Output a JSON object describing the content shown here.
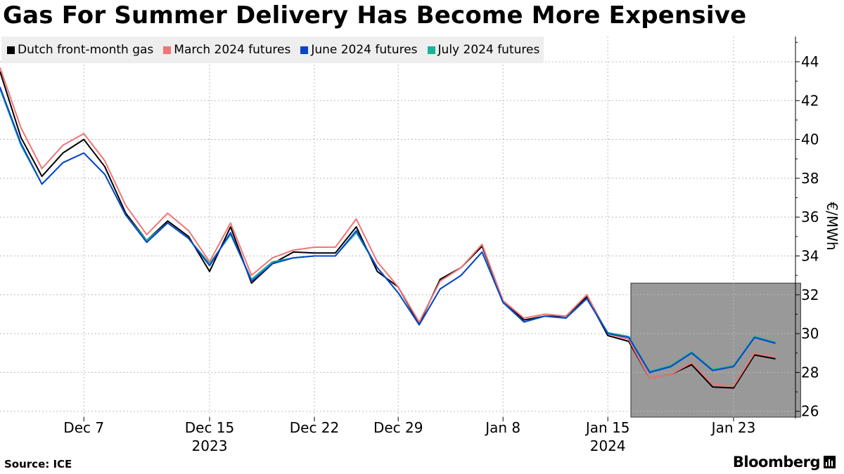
{
  "title": "Gas For Summer Delivery Has Become More Expensive",
  "source": "Source: ICE",
  "brand": "Bloomberg",
  "colors": {
    "dutch": "#000000",
    "march": "#f07575",
    "june": "#0a45c8",
    "july": "#1ab394",
    "highlight": "#999999",
    "grid": "#bbbbbb",
    "legend_bg": "#eeeeee"
  },
  "chart_data": {
    "type": "line",
    "title": "Gas For Summer Delivery Has Become More Expensive",
    "ylabel": "€/MWh",
    "ylim": [
      25.7,
      45.3
    ],
    "yticks": [
      26,
      28,
      30,
      32,
      34,
      36,
      38,
      40,
      42,
      44
    ],
    "ytick_labels": [
      "26",
      "28",
      "30",
      "32",
      "34",
      "36",
      "38",
      "40",
      "42",
      "44"
    ],
    "x_start": "Dec 1",
    "xticks": [
      {
        "index": 4,
        "label": "Dec 7",
        "year": ""
      },
      {
        "index": 10,
        "label": "Dec 15",
        "year": "2023"
      },
      {
        "index": 15,
        "label": "Dec 22",
        "year": ""
      },
      {
        "index": 19,
        "label": "Dec 29",
        "year": ""
      },
      {
        "index": 24,
        "label": "Jan 8",
        "year": ""
      },
      {
        "index": 29,
        "label": "Jan 15",
        "year": "2024"
      },
      {
        "index": 35,
        "label": "Jan 23",
        "year": ""
      }
    ],
    "highlight": {
      "x_start": 30.1,
      "x_end": 38.2,
      "y_low": 25.7,
      "y_high": 32.6
    },
    "series": [
      {
        "name": "Dutch front-month gas",
        "color": "#000000",
        "values": [
          43.5,
          40.1,
          38.1,
          39.3,
          40.0,
          38.6,
          36.2,
          34.8,
          35.8,
          35.0,
          33.2,
          35.5,
          32.6,
          33.6,
          34.2,
          34.15,
          34.15,
          35.5,
          33.2,
          32.4,
          30.5,
          32.8,
          33.4,
          34.5,
          31.7,
          30.7,
          30.9,
          30.9,
          31.9,
          29.9,
          29.6,
          27.7,
          27.9,
          28.4,
          27.25,
          27.2,
          28.9,
          28.7
        ]
      },
      {
        "name": "March 2024 futures",
        "color": "#f07575",
        "values": [
          43.7,
          40.6,
          38.5,
          39.7,
          40.3,
          38.9,
          36.6,
          35.1,
          36.2,
          35.3,
          33.7,
          35.7,
          33.0,
          33.9,
          34.3,
          34.45,
          34.45,
          35.9,
          33.7,
          32.4,
          30.6,
          32.7,
          33.4,
          34.6,
          31.7,
          30.8,
          31.0,
          30.9,
          32.0,
          30.0,
          29.7,
          27.7,
          27.9,
          28.5,
          27.4,
          27.3,
          29.0,
          28.8
        ]
      },
      {
        "name": "June 2024 futures",
        "color": "#0a45c8",
        "values": [
          42.7,
          39.8,
          37.7,
          38.8,
          39.3,
          38.2,
          36.1,
          34.7,
          35.7,
          34.9,
          33.5,
          35.2,
          32.7,
          33.6,
          33.9,
          34.0,
          34.0,
          35.3,
          33.4,
          32.1,
          30.45,
          32.3,
          33.0,
          34.2,
          31.6,
          30.6,
          30.9,
          30.8,
          31.8,
          30.0,
          29.8,
          28.0,
          28.3,
          29.0,
          28.1,
          28.3,
          29.8,
          29.5
        ]
      },
      {
        "name": "July 2024 futures",
        "color": "#1ab394",
        "values": [
          42.6,
          39.7,
          37.7,
          38.8,
          39.3,
          38.2,
          36.1,
          34.8,
          35.7,
          34.9,
          33.6,
          35.1,
          32.8,
          33.7,
          33.9,
          34.0,
          34.0,
          35.2,
          33.4,
          32.1,
          30.45,
          32.3,
          33.0,
          34.2,
          31.6,
          30.6,
          30.9,
          30.8,
          31.8,
          30.05,
          29.85,
          28.05,
          28.35,
          29.05,
          28.15,
          28.35,
          29.85,
          29.55
        ]
      }
    ]
  }
}
